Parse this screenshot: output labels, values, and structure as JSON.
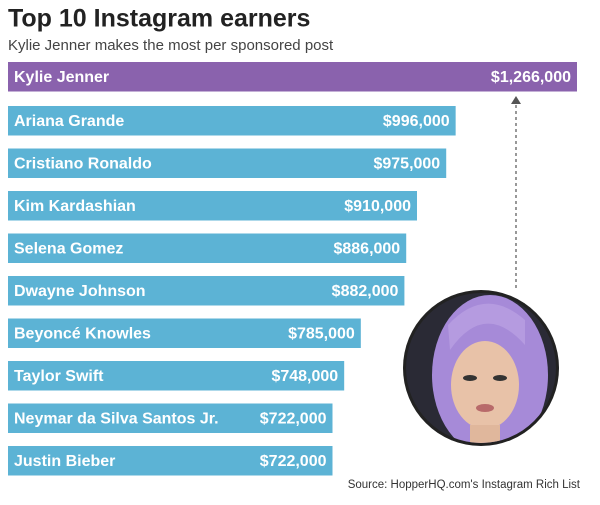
{
  "chart_data": {
    "type": "bar",
    "orientation": "horizontal",
    "title": "Top 10 Instagram earners",
    "subtitle": "Kylie Jenner makes the most per sponsored post",
    "source": "Source: HopperHQ.com's Instagram Rich List",
    "categories": [
      "Kylie Jenner",
      "Ariana Grande",
      "Cristiano Ronaldo",
      "Kim Kardashian",
      "Selena Gomez",
      "Dwayne Johnson",
      "Beyoncé Knowles",
      "Taylor Swift",
      "Neymar da Silva Santos Jr.",
      "Justin Bieber"
    ],
    "values": [
      1266000,
      996000,
      975000,
      910000,
      886000,
      882000,
      785000,
      748000,
      722000,
      722000
    ],
    "value_labels": [
      "$1,266,000",
      "$996,000",
      "$975,000",
      "$910,000",
      "$886,000",
      "$882,000",
      "$785,000",
      "$748,000",
      "$722,000",
      "$722,000"
    ],
    "colors": [
      "#8a62ad",
      "#5cb3d5",
      "#5cb3d5",
      "#5cb3d5",
      "#5cb3d5",
      "#5cb3d5",
      "#5cb3d5",
      "#5cb3d5",
      "#5cb3d5",
      "#5cb3d5"
    ]
  }
}
